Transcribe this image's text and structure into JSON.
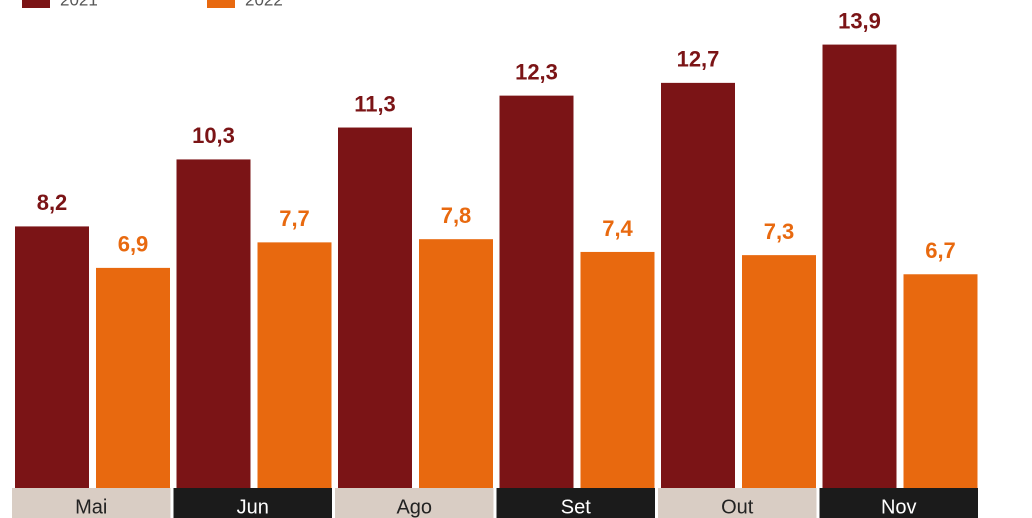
{
  "chart_data": {
    "type": "bar",
    "categories": [
      "Mai",
      "Jun",
      "Ago",
      "Set",
      "Out",
      "Nov"
    ],
    "series": [
      {
        "name": "2021",
        "color": "#7b1416",
        "values": [
          8.2,
          10.3,
          11.3,
          12.3,
          12.7,
          13.9
        ],
        "value_labels": [
          "8,2",
          "10,3",
          "11,3",
          "12,3",
          "12,7",
          "13,9"
        ]
      },
      {
        "name": "2022",
        "color": "#e8690f",
        "values": [
          6.9,
          7.7,
          7.8,
          7.4,
          7.3,
          6.7
        ],
        "value_labels": [
          "6,9",
          "7,7",
          "7,8",
          "7,4",
          "7,3",
          "6,7"
        ]
      }
    ]
  }
}
